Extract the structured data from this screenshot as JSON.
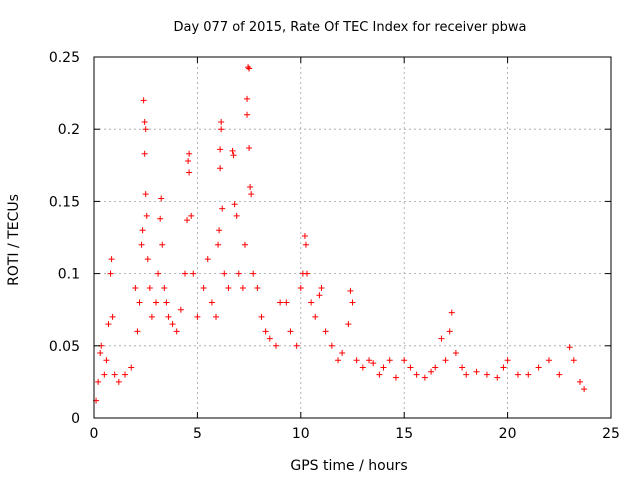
{
  "chart_data": {
    "type": "scatter",
    "title": "Day 077 of 2015, Rate Of TEC Index for receiver pbwa",
    "xlabel": "GPS time / hours",
    "ylabel": "ROTI / TECUs",
    "xlim": [
      0,
      25
    ],
    "ylim": [
      0,
      0.25
    ],
    "xticks": [
      0,
      5,
      10,
      15,
      20,
      25
    ],
    "xtick_labels": [
      "0",
      "5",
      "10",
      "15",
      "20",
      "25"
    ],
    "yticks": [
      0,
      0.05,
      0.1,
      0.15,
      0.2,
      0.25
    ],
    "ytick_labels": [
      "0",
      "0.05",
      "0.1",
      "0.15",
      "0.2",
      "0.25"
    ],
    "grid": true,
    "marker": "plus",
    "marker_color": "#ff0000",
    "series": [
      {
        "points": [
          [
            0.1,
            0.012
          ],
          [
            0.2,
            0.025
          ],
          [
            0.3,
            0.045
          ],
          [
            0.35,
            0.05
          ],
          [
            0.5,
            0.03
          ],
          [
            0.6,
            0.04
          ],
          [
            0.7,
            0.065
          ],
          [
            0.8,
            0.1
          ],
          [
            0.85,
            0.11
          ],
          [
            0.9,
            0.07
          ],
          [
            1.0,
            0.03
          ],
          [
            1.2,
            0.025
          ],
          [
            1.5,
            0.03
          ],
          [
            1.8,
            0.035
          ],
          [
            2.0,
            0.09
          ],
          [
            2.1,
            0.06
          ],
          [
            2.2,
            0.08
          ],
          [
            2.3,
            0.12
          ],
          [
            2.35,
            0.13
          ],
          [
            2.4,
            0.22
          ],
          [
            2.45,
            0.205
          ],
          [
            2.5,
            0.2
          ],
          [
            2.45,
            0.183
          ],
          [
            2.5,
            0.155
          ],
          [
            2.55,
            0.14
          ],
          [
            2.6,
            0.11
          ],
          [
            2.7,
            0.09
          ],
          [
            2.8,
            0.07
          ],
          [
            3.0,
            0.08
          ],
          [
            3.1,
            0.1
          ],
          [
            3.2,
            0.138
          ],
          [
            3.25,
            0.152
          ],
          [
            3.3,
            0.12
          ],
          [
            3.4,
            0.09
          ],
          [
            3.5,
            0.08
          ],
          [
            3.6,
            0.07
          ],
          [
            3.8,
            0.065
          ],
          [
            4.0,
            0.06
          ],
          [
            4.2,
            0.075
          ],
          [
            4.4,
            0.1
          ],
          [
            4.5,
            0.137
          ],
          [
            4.6,
            0.183
          ],
          [
            4.55,
            0.178
          ],
          [
            4.6,
            0.17
          ],
          [
            4.7,
            0.14
          ],
          [
            4.8,
            0.1
          ],
          [
            5.0,
            0.07
          ],
          [
            5.3,
            0.09
          ],
          [
            5.5,
            0.11
          ],
          [
            5.7,
            0.08
          ],
          [
            5.9,
            0.07
          ],
          [
            6.0,
            0.12
          ],
          [
            6.05,
            0.13
          ],
          [
            6.1,
            0.173
          ],
          [
            6.1,
            0.186
          ],
          [
            6.15,
            0.2
          ],
          [
            6.15,
            0.205
          ],
          [
            6.2,
            0.145
          ],
          [
            6.3,
            0.1
          ],
          [
            6.5,
            0.09
          ],
          [
            6.7,
            0.185
          ],
          [
            6.75,
            0.182
          ],
          [
            6.8,
            0.148
          ],
          [
            6.9,
            0.14
          ],
          [
            7.0,
            0.1
          ],
          [
            7.2,
            0.09
          ],
          [
            7.3,
            0.12
          ],
          [
            7.4,
            0.21
          ],
          [
            7.4,
            0.221
          ],
          [
            7.45,
            0.243
          ],
          [
            7.5,
            0.242
          ],
          [
            7.5,
            0.187
          ],
          [
            7.55,
            0.16
          ],
          [
            7.6,
            0.155
          ],
          [
            7.7,
            0.1
          ],
          [
            7.9,
            0.09
          ],
          [
            8.1,
            0.07
          ],
          [
            8.3,
            0.06
          ],
          [
            8.5,
            0.055
          ],
          [
            8.8,
            0.05
          ],
          [
            9.0,
            0.08
          ],
          [
            9.3,
            0.08
          ],
          [
            9.5,
            0.06
          ],
          [
            9.8,
            0.05
          ],
          [
            10.0,
            0.09
          ],
          [
            10.1,
            0.1
          ],
          [
            10.2,
            0.126
          ],
          [
            10.25,
            0.12
          ],
          [
            10.3,
            0.1
          ],
          [
            10.5,
            0.08
          ],
          [
            10.7,
            0.07
          ],
          [
            10.9,
            0.085
          ],
          [
            11.0,
            0.09
          ],
          [
            11.2,
            0.06
          ],
          [
            11.5,
            0.05
          ],
          [
            11.8,
            0.04
          ],
          [
            12.0,
            0.045
          ],
          [
            12.3,
            0.065
          ],
          [
            12.4,
            0.088
          ],
          [
            12.5,
            0.08
          ],
          [
            12.7,
            0.04
          ],
          [
            13.0,
            0.035
          ],
          [
            13.3,
            0.04
          ],
          [
            13.5,
            0.038
          ],
          [
            13.8,
            0.03
          ],
          [
            14.0,
            0.035
          ],
          [
            14.3,
            0.04
          ],
          [
            14.6,
            0.028
          ],
          [
            15.0,
            0.04
          ],
          [
            15.3,
            0.035
          ],
          [
            15.6,
            0.03
          ],
          [
            16.0,
            0.028
          ],
          [
            16.3,
            0.032
          ],
          [
            16.5,
            0.035
          ],
          [
            16.8,
            0.055
          ],
          [
            17.0,
            0.04
          ],
          [
            17.2,
            0.06
          ],
          [
            17.3,
            0.073
          ],
          [
            17.5,
            0.045
          ],
          [
            17.8,
            0.035
          ],
          [
            18.0,
            0.03
          ],
          [
            18.5,
            0.032
          ],
          [
            19.0,
            0.03
          ],
          [
            19.5,
            0.028
          ],
          [
            19.8,
            0.035
          ],
          [
            20.0,
            0.04
          ],
          [
            20.5,
            0.03
          ],
          [
            21.0,
            0.03
          ],
          [
            21.5,
            0.035
          ],
          [
            22.0,
            0.04
          ],
          [
            22.5,
            0.03
          ],
          [
            23.0,
            0.049
          ],
          [
            23.2,
            0.04
          ],
          [
            23.5,
            0.025
          ],
          [
            23.7,
            0.02
          ]
        ]
      }
    ]
  }
}
